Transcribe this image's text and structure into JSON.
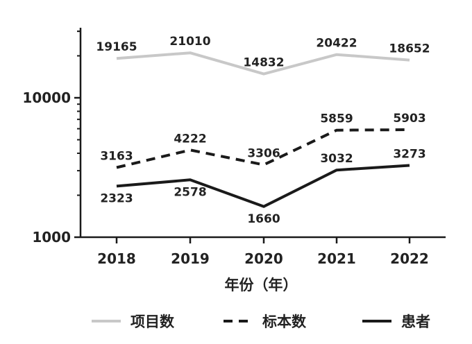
{
  "chart_data": {
    "type": "line",
    "title": "",
    "xlabel": "年份（年）",
    "ylabel": "",
    "yscale": "log",
    "ylim": [
      1000,
      30000
    ],
    "y_ticks": [
      1000,
      10000
    ],
    "y_tick_labels": [
      "1000",
      "10000"
    ],
    "categories": [
      "2018",
      "2019",
      "2020",
      "2021",
      "2022"
    ],
    "grid": false,
    "legend_position": "bottom",
    "series": [
      {
        "name": "项目数",
        "values": [
          19165,
          21010,
          14832,
          20422,
          18652
        ],
        "labels": [
          "19165",
          "21010",
          "14832",
          "20422",
          "18652"
        ],
        "color": "#c8c8c8",
        "style": "solid",
        "label_side": "above"
      },
      {
        "name": "标本数",
        "values": [
          3163,
          4222,
          3306,
          5859,
          5903
        ],
        "labels": [
          "3163",
          "4222",
          "3306",
          "5859",
          "5903"
        ],
        "color": "#1a1a1a",
        "style": "dashed",
        "label_side": "above"
      },
      {
        "name": "患者",
        "values": [
          2323,
          2578,
          1660,
          3032,
          3273
        ],
        "labels": [
          "2323",
          "2578",
          "1660",
          "3032",
          "3273"
        ],
        "color": "#1a1a1a",
        "style": "solid",
        "label_side": "mixed"
      }
    ]
  }
}
